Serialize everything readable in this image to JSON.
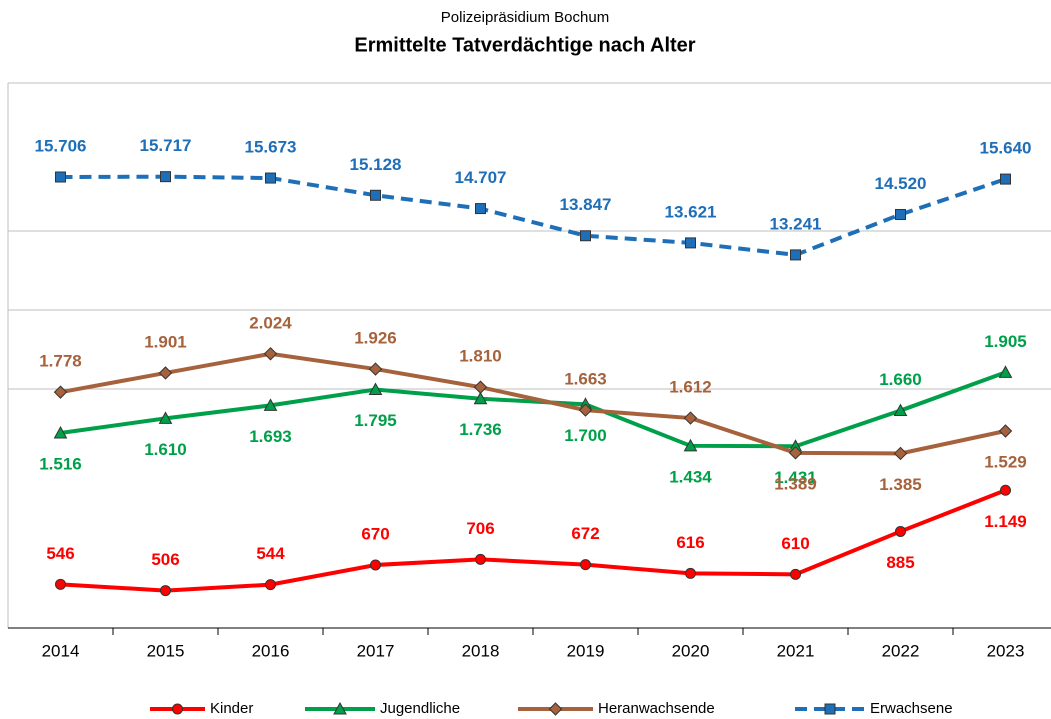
{
  "chart_data": {
    "type": "line",
    "subtitle": "Polizeipräsidium Bochum",
    "title": "Ermittelte Tatverdächtige nach Alter",
    "categories": [
      "2014",
      "2015",
      "2016",
      "2017",
      "2018",
      "2019",
      "2020",
      "2021",
      "2022",
      "2023"
    ],
    "ylim": [
      266,
      3760
    ],
    "y2lim": [
      1434,
      18681
    ],
    "grid": true,
    "legend": "bottom",
    "series": [
      {
        "name": "Kinder",
        "color": "#ff0000",
        "marker": "circle",
        "dashed": false,
        "values": [
          546,
          506,
          544,
          670,
          706,
          672,
          616,
          610,
          885,
          1149
        ],
        "value_labels": [
          "546",
          "506",
          "544",
          "670",
          "706",
          "672",
          "616",
          "610",
          "885",
          "1.149"
        ],
        "label_positions": [
          "above",
          "above",
          "above",
          "above",
          "above",
          "above",
          "above",
          "above",
          "below",
          "below"
        ]
      },
      {
        "name": "Jugendliche",
        "color": "#00a04a",
        "marker": "triangle",
        "dashed": false,
        "values": [
          1516,
          1610,
          1693,
          1795,
          1736,
          1700,
          1434,
          1431,
          1660,
          1905
        ],
        "value_labels": [
          "1.516",
          "1.610",
          "1.693",
          "1.795",
          "1.736",
          "1.700",
          "1.434",
          "1.431",
          "1.660",
          "1.905"
        ],
        "label_positions": [
          "below",
          "below",
          "below",
          "below",
          "below",
          "below",
          "below",
          "below",
          "above",
          "above"
        ]
      },
      {
        "name": "Heranwachsende",
        "color": "#a5623c",
        "marker": "diamond",
        "dashed": false,
        "values": [
          1778,
          1901,
          2024,
          1926,
          1810,
          1663,
          1612,
          1389,
          1385,
          1529
        ],
        "value_labels": [
          "1.778",
          "1.901",
          "2.024",
          "1.926",
          "1.810",
          "1.663",
          "1.612",
          "1.389",
          "1.385",
          "1.529"
        ],
        "label_positions": [
          "above",
          "above",
          "above",
          "above",
          "above",
          "above",
          "above",
          "below",
          "below",
          "below"
        ]
      },
      {
        "name": "Erwachsene",
        "color": "#1f6fb8",
        "marker": "square",
        "dashed": true,
        "axis": "y2",
        "values": [
          15706,
          15717,
          15673,
          15128,
          14707,
          13847,
          13621,
          13241,
          14520,
          15640
        ],
        "value_labels": [
          "15.706",
          "15.717",
          "15.673",
          "15.128",
          "14.707",
          "13.847",
          "13.621",
          "13.241",
          "14.520",
          "15.640"
        ],
        "label_positions": [
          "above",
          "above",
          "above",
          "above",
          "above",
          "above",
          "above",
          "above",
          "above",
          "above"
        ]
      }
    ]
  }
}
